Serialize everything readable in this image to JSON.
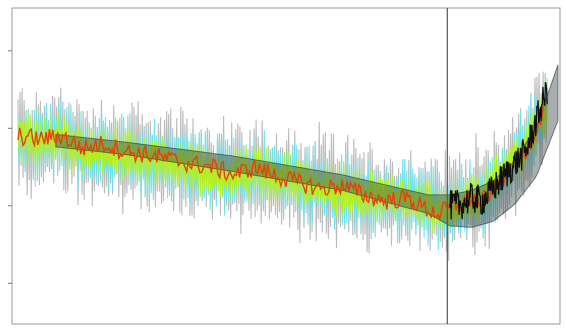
{
  "chart_data": {
    "type": "line",
    "title": "",
    "xlabel": "",
    "ylabel": "",
    "grid": false,
    "legend": "none",
    "xlim": [
      0,
      100
    ],
    "ylim": [
      -1,
      1
    ],
    "x_ticks": [],
    "y_ticks": [
      -0.75,
      -0.25,
      0.25,
      0.75
    ],
    "vertical_reference_line_x": 79.5,
    "x": [
      0,
      4,
      8,
      12,
      16,
      20,
      24,
      28,
      32,
      36,
      40,
      44,
      48,
      52,
      56,
      60,
      64,
      68,
      72,
      76,
      78,
      80,
      82,
      84,
      86,
      88,
      90,
      92,
      94,
      96,
      98
    ],
    "series": [
      {
        "values": [
          0.2,
          0.15,
          0.18,
          0.1,
          0.12,
          0.08,
          0.06,
          0.02,
          0.0,
          -0.02,
          -0.05,
          -0.02,
          -0.08,
          -0.1,
          -0.12,
          -0.15,
          -0.18,
          -0.2,
          -0.22,
          -0.25,
          -0.27,
          -0.25,
          -0.22,
          -0.18,
          -0.2,
          -0.12,
          -0.05,
          0.05,
          0.12,
          0.28,
          0.4
        ],
        "color": "#b8b8b8",
        "spread": 0.42
      },
      {
        "values": [
          0.2,
          0.15,
          0.18,
          0.1,
          0.12,
          0.08,
          0.06,
          0.02,
          0.0,
          -0.02,
          -0.05,
          -0.02,
          -0.08,
          -0.1,
          -0.12,
          -0.15,
          -0.18,
          -0.2,
          -0.22,
          -0.25,
          -0.27,
          -0.25,
          -0.22,
          -0.18,
          -0.2,
          -0.12,
          -0.05,
          0.05,
          0.12,
          0.28,
          0.4
        ],
        "color": "#66e6ee",
        "spread": 0.3
      },
      {
        "values": [
          0.2,
          0.15,
          0.18,
          0.1,
          0.12,
          0.08,
          0.06,
          0.02,
          0.0,
          -0.02,
          -0.05,
          -0.02,
          -0.08,
          -0.1,
          -0.12,
          -0.15,
          -0.18,
          -0.2,
          -0.22,
          -0.25,
          -0.27,
          -0.25,
          -0.22,
          -0.18,
          -0.2,
          -0.12,
          -0.05,
          0.05,
          0.12,
          0.28,
          0.4
        ],
        "color": "#b6f01a",
        "spread": 0.2
      },
      {
        "values": [
          0.2,
          0.18,
          0.2,
          0.12,
          0.15,
          0.1,
          0.08,
          0.05,
          0.02,
          0.0,
          -0.05,
          0.0,
          -0.06,
          -0.1,
          -0.14,
          -0.12,
          -0.18,
          -0.22,
          -0.2,
          -0.28,
          -0.3,
          -0.26,
          -0.24,
          -0.2,
          -0.22,
          -0.15,
          -0.06,
          0.04,
          0.1,
          0.25,
          0.45
        ],
        "color": "#e8400c",
        "spread": 0.0
      },
      {
        "values": [
          null,
          null,
          null,
          null,
          null,
          null,
          null,
          null,
          null,
          null,
          null,
          null,
          null,
          null,
          null,
          null,
          null,
          null,
          null,
          null,
          null,
          -0.25,
          -0.24,
          -0.2,
          -0.22,
          -0.14,
          -0.06,
          0.02,
          0.1,
          0.3,
          0.5
        ],
        "color": "#101010",
        "spread": 0.0
      }
    ],
    "shaded_band": {
      "x": [
        7,
        20,
        40,
        60,
        76,
        80,
        84,
        88,
        92,
        96,
        100
      ],
      "center": [
        0.17,
        0.12,
        0.02,
        -0.1,
        -0.24,
        -0.28,
        -0.27,
        -0.22,
        -0.1,
        0.1,
        0.48
      ],
      "half_width": [
        0.04,
        0.04,
        0.05,
        0.05,
        0.06,
        0.1,
        0.12,
        0.13,
        0.14,
        0.16,
        0.18
      ],
      "color": "#3f4a4a"
    }
  }
}
